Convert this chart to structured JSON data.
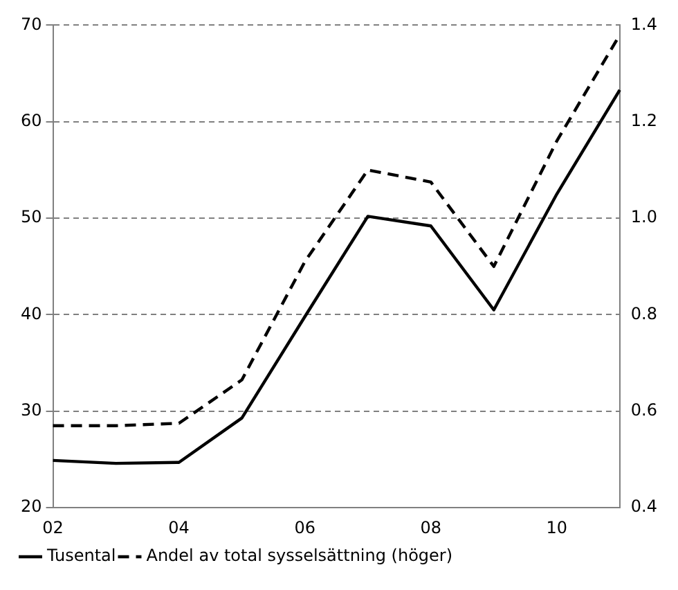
{
  "chart_data": {
    "type": "line",
    "categories": [
      "02",
      null,
      "04",
      null,
      "06",
      null,
      "08",
      null,
      "10",
      null
    ],
    "series": [
      {
        "name": "Tusental",
        "color": "#000000",
        "line_style": "solid",
        "values": [
          24.9,
          24.6,
          24.7,
          29.3,
          39.8,
          50.2,
          49.2,
          40.5,
          52.5,
          63.3
        ]
      },
      {
        "name": "Andel av total sysselsättning (höger)",
        "color": "#000000",
        "line_style": "dashed",
        "axis": "y2",
        "values": [
          0.57,
          0.57,
          0.575,
          0.665,
          0.91,
          1.1,
          1.075,
          0.9,
          1.16,
          1.38
        ]
      }
    ],
    "ylim": [
      20,
      70
    ],
    "yticks": [
      20,
      30,
      40,
      50,
      60,
      70
    ],
    "y2lim": [
      0.4,
      1.4
    ],
    "y2ticks": [
      {
        "value": 0.4,
        "label": "0.4"
      },
      {
        "value": 0.6,
        "label": "0.6"
      },
      {
        "value": 0.8,
        "label": "0.8"
      },
      {
        "value": 1.0,
        "label": "1.0"
      },
      {
        "value": 1.2,
        "label": "1.2"
      },
      {
        "value": 1.4,
        "label": "1.4"
      }
    ],
    "grid": "y",
    "legend": "bottom",
    "marker": "none"
  }
}
